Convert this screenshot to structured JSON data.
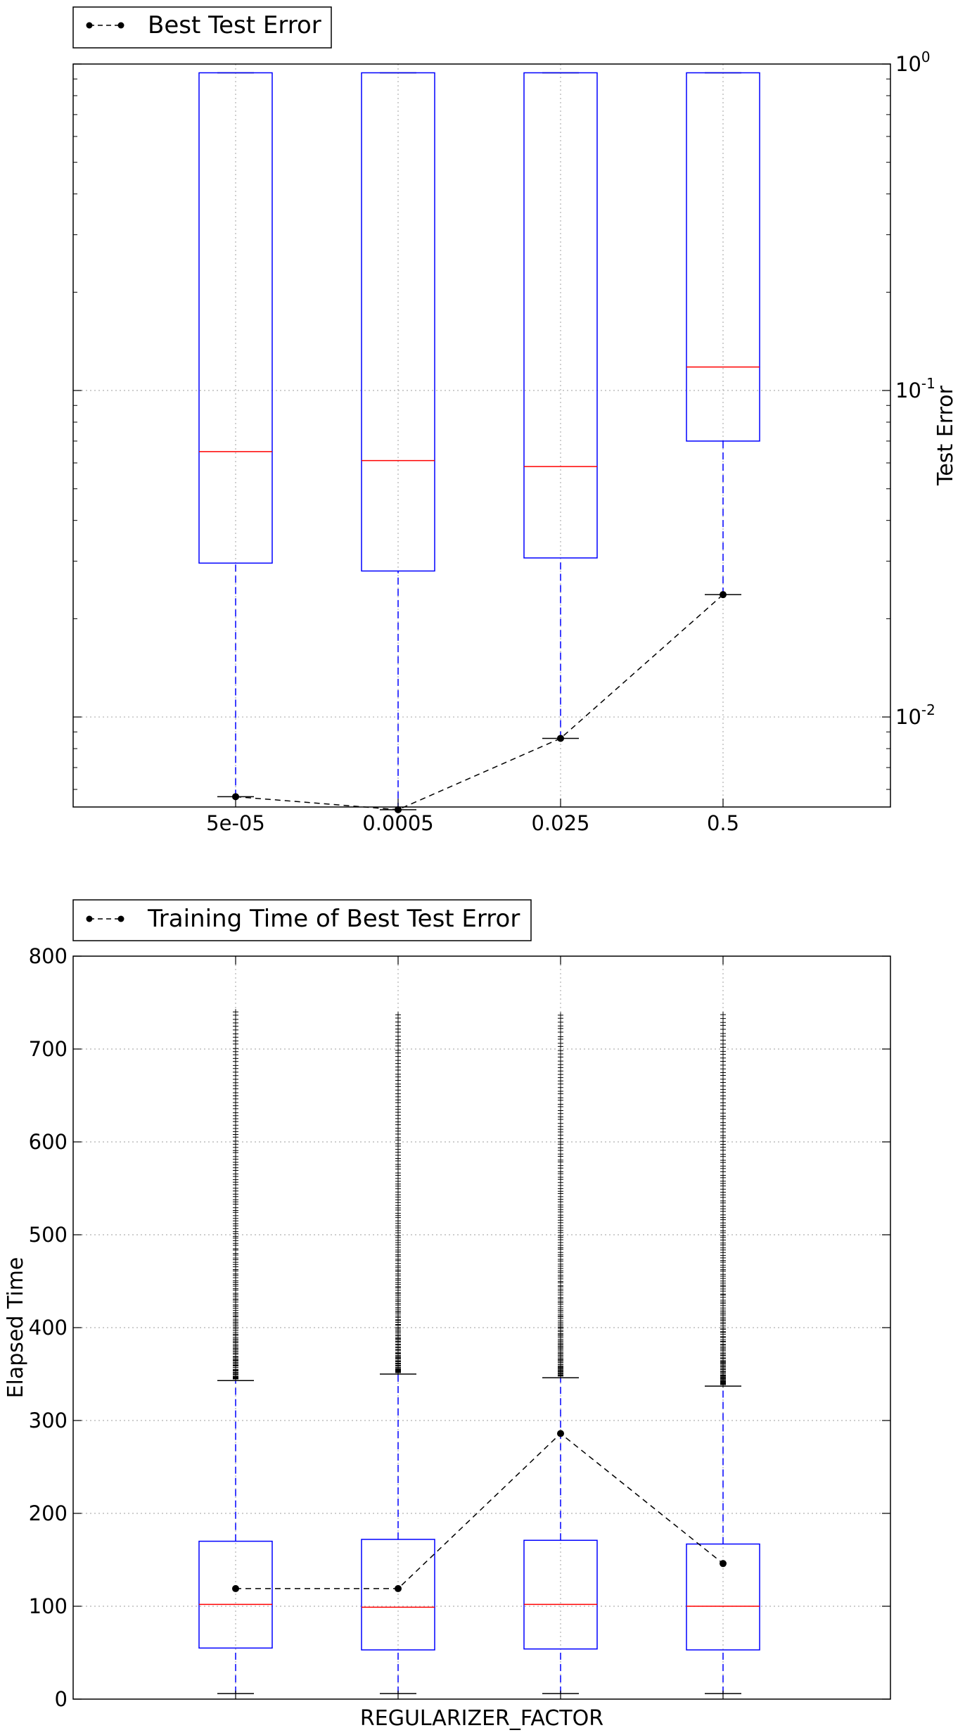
{
  "chart_data": [
    {
      "type": "box",
      "legend": {
        "label": "Best Test Error",
        "placement": "top-left-outside"
      },
      "ylabel": "Test Error",
      "ylabel_side": "right",
      "y_scale": "log",
      "ylim": [
        0.0053,
        1.0
      ],
      "yticks": [
        {
          "value": 1.0,
          "base": "10",
          "exp": "0"
        },
        {
          "value": 0.1,
          "base": "10",
          "exp": "-1"
        },
        {
          "value": 0.01,
          "base": "10",
          "exp": "-2"
        }
      ],
      "grid": true,
      "categories": [
        "5e-05",
        "0.0005",
        "0.025",
        "0.5"
      ],
      "boxes": [
        {
          "category": "5e-05",
          "whisker_low": 0.0057,
          "q1": 0.0296,
          "median": 0.065,
          "q3": 0.94,
          "whisker_high": 0.94
        },
        {
          "category": "0.0005",
          "whisker_low": 0.0052,
          "q1": 0.028,
          "median": 0.061,
          "q3": 0.94,
          "whisker_high": 0.94
        },
        {
          "category": "0.025",
          "whisker_low": 0.0086,
          "q1": 0.0307,
          "median": 0.0585,
          "q3": 0.94,
          "whisker_high": 0.94
        },
        {
          "category": "0.5",
          "whisker_low": 0.0237,
          "q1": 0.07,
          "median": 0.118,
          "q3": 0.94,
          "whisker_high": 0.94
        }
      ],
      "best_line": {
        "name": "Best Test Error",
        "values": [
          0.0057,
          0.0052,
          0.0086,
          0.0237
        ]
      },
      "colors": {
        "box": "#0000ff",
        "median": "#ff0000",
        "whisker": "#0000ff",
        "best_line": "#000000",
        "grid": "#b0b0b0"
      }
    },
    {
      "type": "box",
      "legend": {
        "label": "Training Time of Best Test Error",
        "placement": "top-left-outside"
      },
      "ylabel": "Elapsed Time",
      "ylabel_side": "left",
      "xlabel": "REGULARIZER_FACTOR",
      "y_scale": "linear",
      "ylim": [
        0,
        800
      ],
      "yticks": [
        0,
        100,
        200,
        300,
        400,
        500,
        600,
        700,
        800
      ],
      "grid": true,
      "categories": [
        "5e-05",
        "0.0005",
        "0.025",
        "0.5"
      ],
      "boxes": [
        {
          "category": "5e-05",
          "whisker_low": 6,
          "q1": 55,
          "median": 102,
          "q3": 170,
          "whisker_high": 343,
          "fliers_low": 345,
          "fliers_high": 740
        },
        {
          "category": "0.0005",
          "whisker_low": 6,
          "q1": 53,
          "median": 99,
          "q3": 172,
          "whisker_high": 350,
          "fliers_low": 352,
          "fliers_high": 737
        },
        {
          "category": "0.025",
          "whisker_low": 6,
          "q1": 54,
          "median": 102,
          "q3": 171,
          "whisker_high": 346,
          "fliers_low": 348,
          "fliers_high": 737
        },
        {
          "category": "0.5",
          "whisker_low": 6,
          "q1": 53,
          "median": 100,
          "q3": 167,
          "whisker_high": 337,
          "fliers_low": 339,
          "fliers_high": 737
        }
      ],
      "best_line": {
        "name": "Training Time of Best Test Error",
        "values": [
          119,
          119,
          286,
          146
        ]
      },
      "colors": {
        "box": "#0000ff",
        "median": "#ff0000",
        "whisker": "#0000ff",
        "best_line": "#000000",
        "grid": "#b0b0b0",
        "flier": "#000000"
      }
    }
  ]
}
